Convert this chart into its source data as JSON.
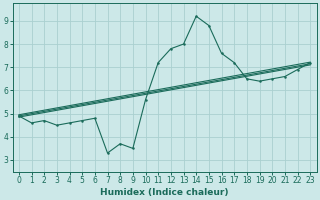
{
  "xlabel": "Humidex (Indice chaleur)",
  "bg_color": "#cce8e8",
  "grid_color": "#aad0d0",
  "line_color": "#1a6b5a",
  "xlim": [
    -0.5,
    23.5
  ],
  "ylim": [
    2.5,
    9.75
  ],
  "xticks": [
    0,
    1,
    2,
    3,
    4,
    5,
    6,
    7,
    8,
    9,
    10,
    11,
    12,
    13,
    14,
    15,
    16,
    17,
    18,
    19,
    20,
    21,
    22,
    23
  ],
  "yticks": [
    3,
    4,
    5,
    6,
    7,
    8,
    9
  ],
  "main_x": [
    0,
    1,
    2,
    3,
    4,
    5,
    6,
    7,
    8,
    9,
    10,
    11,
    12,
    13,
    14,
    15,
    16,
    17,
    18,
    19,
    20,
    21,
    22,
    23
  ],
  "main_y": [
    4.9,
    4.6,
    4.7,
    4.5,
    4.6,
    4.7,
    4.8,
    3.3,
    3.7,
    3.5,
    5.6,
    7.2,
    7.8,
    8.0,
    9.2,
    8.8,
    7.6,
    7.2,
    6.5,
    6.4,
    6.5,
    6.6,
    6.9,
    7.2
  ],
  "trend1_x": [
    0,
    23
  ],
  "trend1_y": [
    4.85,
    7.1
  ],
  "trend2_x": [
    0,
    23
  ],
  "trend2_y": [
    4.9,
    7.15
  ],
  "trend3_x": [
    0,
    23
  ],
  "trend3_y": [
    4.95,
    7.22
  ]
}
